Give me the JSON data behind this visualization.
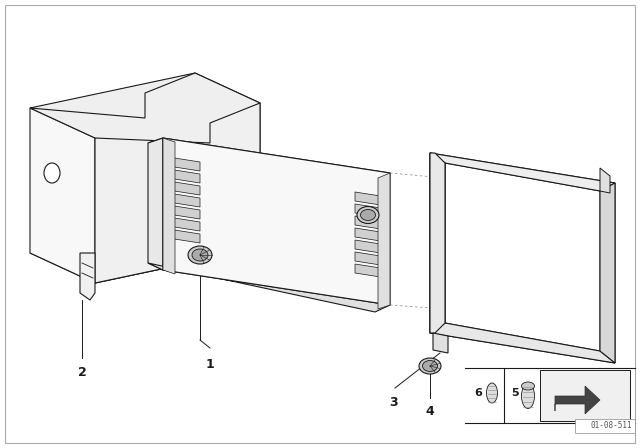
{
  "background_color": "#ffffff",
  "line_color": "#1a1a1a",
  "dot_color": "#888888",
  "fig_width": 6.4,
  "fig_height": 4.48,
  "dpi": 100,
  "diagram_id": "01-08-511",
  "border_color": "#cccccc"
}
